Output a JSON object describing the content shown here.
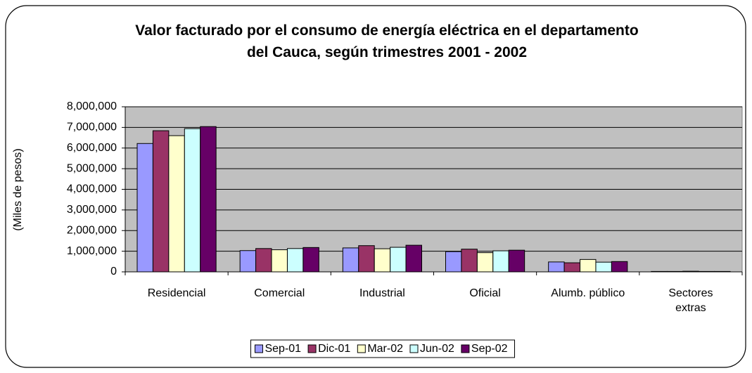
{
  "chart_data": {
    "type": "bar",
    "title": "Valor facturado por el consumo de energía eléctrica en el departamento del Cauca, según trimestres 2001 - 2002",
    "y_label": "(Miles de pesos)",
    "categories": [
      "Residencial",
      "Comercial",
      "Industrial",
      "Oficial",
      "Alumb. público",
      "Sectores extras"
    ],
    "series": [
      {
        "name": "Sep-01",
        "color": "#9999ff",
        "values": [
          6220000,
          1030000,
          1160000,
          980000,
          480000,
          20000
        ]
      },
      {
        "name": "Dic-01",
        "color": "#993366",
        "values": [
          6840000,
          1130000,
          1270000,
          1100000,
          440000,
          20000
        ]
      },
      {
        "name": "Mar-02",
        "color": "#ffffcc",
        "values": [
          6600000,
          1070000,
          1120000,
          930000,
          600000,
          30000
        ]
      },
      {
        "name": "Jun-02",
        "color": "#ccffff",
        "values": [
          6940000,
          1130000,
          1190000,
          1020000,
          470000,
          20000
        ]
      },
      {
        "name": "Sep-02",
        "color": "#660066",
        "values": [
          7040000,
          1180000,
          1290000,
          1050000,
          500000,
          20000
        ]
      }
    ],
    "ylim": [
      0,
      8000000
    ],
    "yticks": [
      0,
      {
        "value": 1000000,
        "label": "1,000,000"
      },
      {
        "value": 2000000,
        "label": "2,000,000"
      },
      {
        "value": 3000000,
        "label": "3,000,000"
      },
      {
        "value": 4000000,
        "label": "4,000,000"
      },
      {
        "value": 5000000,
        "label": "5,000,000"
      },
      {
        "value": 6000000,
        "label": "6,000,000"
      },
      {
        "value": 7000000,
        "label": "7,000,000"
      },
      {
        "value": 8000000,
        "label": "8,000,000"
      }
    ],
    "grid": true,
    "legend": "bottom",
    "plot_background": "#c0c0c0"
  }
}
